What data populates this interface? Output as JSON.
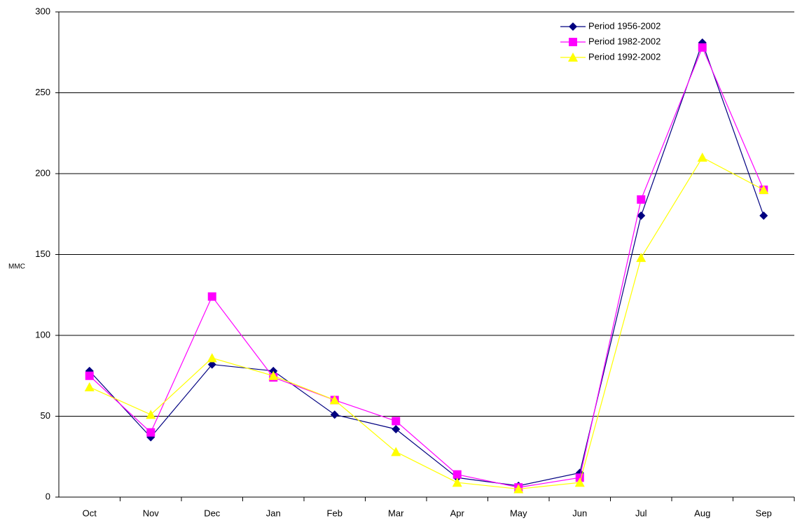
{
  "chart_data": {
    "type": "line",
    "y_label": "MMC",
    "categories": [
      "Oct",
      "Nov",
      "Dec",
      "Jan",
      "Feb",
      "Mar",
      "Apr",
      "May",
      "Jun",
      "Jul",
      "Aug",
      "Sep"
    ],
    "series": [
      {
        "name": "Period 1956-2002",
        "color": "#000080",
        "marker": "diamond",
        "values": [
          78,
          37,
          82,
          78,
          51,
          42,
          12,
          7,
          15,
          174,
          281,
          174
        ]
      },
      {
        "name": "Period 1982-2002",
        "color": "#ff00ff",
        "marker": "square",
        "values": [
          75,
          40,
          124,
          74,
          60,
          47,
          14,
          6,
          12,
          184,
          278,
          190
        ]
      },
      {
        "name": "Period 1992-2002",
        "color": "#ffff00",
        "marker": "triangle",
        "values": [
          68,
          51,
          86,
          75,
          60,
          28,
          9,
          5,
          9,
          148,
          210,
          190
        ]
      }
    ],
    "ylim": [
      0,
      300
    ],
    "yticks": [
      0,
      50,
      100,
      150,
      200,
      250,
      300
    ],
    "grid": true,
    "legend": "upper right"
  }
}
